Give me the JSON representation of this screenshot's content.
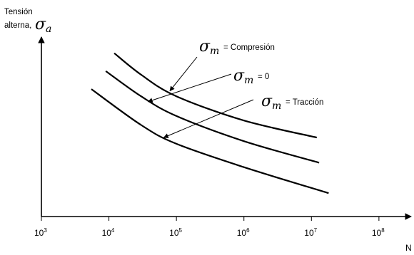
{
  "chart_data": {
    "type": "line",
    "title": "",
    "ylabel": {
      "line1": "Tensión",
      "line2": "alterna,",
      "symbol_base": "σ",
      "symbol_sub": "a"
    },
    "xlabel": "N",
    "xscale": "log",
    "xlim": [
      1000,
      300000000
    ],
    "ylim": [
      0,
      100
    ],
    "x_ticks": [
      {
        "value": 1000,
        "base": "10",
        "exp": "3"
      },
      {
        "value": 10000,
        "base": "10",
        "exp": "4"
      },
      {
        "value": 100000,
        "base": "10",
        "exp": "5"
      },
      {
        "value": 1000000,
        "base": "10",
        "exp": "6"
      },
      {
        "value": 10000000,
        "base": "10",
        "exp": "7"
      },
      {
        "value": 100000000,
        "base": "10",
        "exp": "8"
      }
    ],
    "y_ticks": [],
    "grid": false,
    "series": [
      {
        "symbol_base": "σ",
        "symbol_sub": "m",
        "suffix": "= Compresión",
        "points": [
          [
            12000,
            91
          ],
          [
            30000,
            79
          ],
          [
            100000,
            67
          ],
          [
            1000000,
            53.5
          ],
          [
            12000000,
            44
          ]
        ]
      },
      {
        "symbol_base": "σ",
        "symbol_sub": "m",
        "suffix": "= 0",
        "points": [
          [
            9000,
            81
          ],
          [
            30000,
            67
          ],
          [
            100000,
            56
          ],
          [
            1000000,
            42
          ],
          [
            13000000,
            30
          ]
        ]
      },
      {
        "symbol_base": "σ",
        "symbol_sub": "m",
        "suffix": "= Tracción",
        "points": [
          [
            5500,
            71
          ],
          [
            30000,
            51
          ],
          [
            100000,
            40.5
          ],
          [
            1000000,
            27.5
          ],
          [
            18000000,
            13
          ]
        ]
      }
    ],
    "annotations": [
      {
        "series": 0,
        "target": [
          80000,
          70
        ]
      },
      {
        "series": 1,
        "target": [
          38000,
          64
        ]
      },
      {
        "series": 2,
        "target": [
          65000,
          44
        ]
      }
    ]
  }
}
